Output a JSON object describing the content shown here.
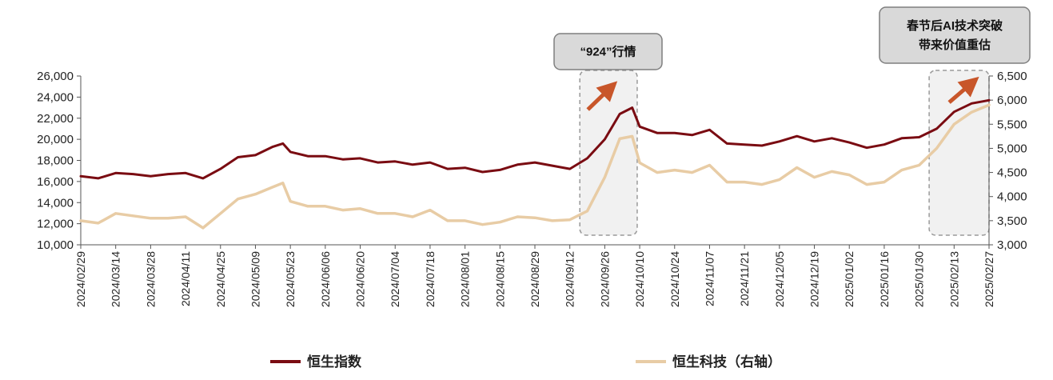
{
  "chart_data": {
    "type": "line",
    "x_labels": [
      "2024/02/29",
      "2024/03/14",
      "2024/03/28",
      "2024/04/11",
      "2024/04/25",
      "2024/05/09",
      "2024/05/23",
      "2024/06/06",
      "2024/06/20",
      "2024/07/04",
      "2024/07/18",
      "2024/08/01",
      "2024/08/15",
      "2024/08/29",
      "2024/09/12",
      "2024/09/26",
      "2024/10/10",
      "2024/10/24",
      "2024/11/07",
      "2024/11/21",
      "2024/12/05",
      "2024/12/19",
      "2025/01/02",
      "2025/01/16",
      "2025/01/30",
      "2025/02/13",
      "2025/02/27"
    ],
    "left_axis": {
      "ylim": [
        10000,
        26000
      ],
      "ticks": [
        "10,000",
        "12,000",
        "14,000",
        "16,000",
        "18,000",
        "20,000",
        "22,000",
        "24,000",
        "26,000"
      ]
    },
    "right_axis": {
      "ylim": [
        3000,
        6500
      ],
      "ticks": [
        "3,000",
        "3,500",
        "4,000",
        "4,500",
        "5,000",
        "5,500",
        "6,000",
        "6,500"
      ]
    },
    "series": [
      {
        "name": "恒生指数",
        "axis": "left",
        "color": "#7a0c12",
        "points": [
          [
            "2024/02/29",
            16500
          ],
          [
            "2024/03/07",
            16300
          ],
          [
            "2024/03/14",
            16800
          ],
          [
            "2024/03/21",
            16700
          ],
          [
            "2024/03/28",
            16500
          ],
          [
            "2024/04/04",
            16700
          ],
          [
            "2024/04/11",
            16800
          ],
          [
            "2024/04/18",
            16300
          ],
          [
            "2024/04/25",
            17200
          ],
          [
            "2024/05/02",
            18300
          ],
          [
            "2024/05/09",
            18500
          ],
          [
            "2024/05/16",
            19300
          ],
          [
            "2024/05/20",
            19600
          ],
          [
            "2024/05/23",
            18800
          ],
          [
            "2024/05/30",
            18400
          ],
          [
            "2024/06/06",
            18400
          ],
          [
            "2024/06/13",
            18100
          ],
          [
            "2024/06/20",
            18200
          ],
          [
            "2024/06/27",
            17800
          ],
          [
            "2024/07/04",
            17900
          ],
          [
            "2024/07/11",
            17600
          ],
          [
            "2024/07/18",
            17800
          ],
          [
            "2024/07/25",
            17200
          ],
          [
            "2024/08/01",
            17300
          ],
          [
            "2024/08/08",
            16900
          ],
          [
            "2024/08/15",
            17100
          ],
          [
            "2024/08/22",
            17600
          ],
          [
            "2024/08/29",
            17800
          ],
          [
            "2024/09/05",
            17500
          ],
          [
            "2024/09/12",
            17200
          ],
          [
            "2024/09/19",
            18200
          ],
          [
            "2024/09/26",
            20000
          ],
          [
            "2024/10/02",
            22400
          ],
          [
            "2024/10/07",
            23000
          ],
          [
            "2024/10/10",
            21200
          ],
          [
            "2024/10/17",
            20600
          ],
          [
            "2024/10/24",
            20600
          ],
          [
            "2024/10/31",
            20400
          ],
          [
            "2024/11/07",
            20900
          ],
          [
            "2024/11/14",
            19600
          ],
          [
            "2024/11/21",
            19500
          ],
          [
            "2024/11/28",
            19400
          ],
          [
            "2024/12/05",
            19800
          ],
          [
            "2024/12/12",
            20300
          ],
          [
            "2024/12/19",
            19800
          ],
          [
            "2024/12/26",
            20100
          ],
          [
            "2025/01/02",
            19700
          ],
          [
            "2025/01/09",
            19200
          ],
          [
            "2025/01/16",
            19500
          ],
          [
            "2025/01/23",
            20100
          ],
          [
            "2025/01/30",
            20200
          ],
          [
            "2025/02/06",
            21000
          ],
          [
            "2025/02/13",
            22600
          ],
          [
            "2025/02/20",
            23400
          ],
          [
            "2025/02/27",
            23700
          ]
        ]
      },
      {
        "name": "恒生科技（右轴）",
        "axis": "right",
        "color": "#e8cca5",
        "points": [
          [
            "2024/02/29",
            3500
          ],
          [
            "2024/03/07",
            3450
          ],
          [
            "2024/03/14",
            3650
          ],
          [
            "2024/03/21",
            3600
          ],
          [
            "2024/03/28",
            3550
          ],
          [
            "2024/04/04",
            3550
          ],
          [
            "2024/04/11",
            3580
          ],
          [
            "2024/04/18",
            3350
          ],
          [
            "2024/04/25",
            3650
          ],
          [
            "2024/05/02",
            3950
          ],
          [
            "2024/05/09",
            4050
          ],
          [
            "2024/05/16",
            4200
          ],
          [
            "2024/05/20",
            4280
          ],
          [
            "2024/05/23",
            3900
          ],
          [
            "2024/05/30",
            3800
          ],
          [
            "2024/06/06",
            3800
          ],
          [
            "2024/06/13",
            3720
          ],
          [
            "2024/06/20",
            3750
          ],
          [
            "2024/06/27",
            3650
          ],
          [
            "2024/07/04",
            3650
          ],
          [
            "2024/07/11",
            3580
          ],
          [
            "2024/07/18",
            3720
          ],
          [
            "2024/07/25",
            3500
          ],
          [
            "2024/08/01",
            3500
          ],
          [
            "2024/08/08",
            3420
          ],
          [
            "2024/08/15",
            3470
          ],
          [
            "2024/08/22",
            3580
          ],
          [
            "2024/08/29",
            3560
          ],
          [
            "2024/09/05",
            3500
          ],
          [
            "2024/09/12",
            3520
          ],
          [
            "2024/09/19",
            3700
          ],
          [
            "2024/09/26",
            4400
          ],
          [
            "2024/10/02",
            5200
          ],
          [
            "2024/10/07",
            5250
          ],
          [
            "2024/10/10",
            4700
          ],
          [
            "2024/10/17",
            4500
          ],
          [
            "2024/10/24",
            4550
          ],
          [
            "2024/10/31",
            4500
          ],
          [
            "2024/11/07",
            4650
          ],
          [
            "2024/11/14",
            4300
          ],
          [
            "2024/11/21",
            4300
          ],
          [
            "2024/11/28",
            4250
          ],
          [
            "2024/12/05",
            4350
          ],
          [
            "2024/12/12",
            4600
          ],
          [
            "2024/12/19",
            4400
          ],
          [
            "2024/12/26",
            4520
          ],
          [
            "2025/01/02",
            4450
          ],
          [
            "2025/01/09",
            4250
          ],
          [
            "2025/01/16",
            4300
          ],
          [
            "2025/01/23",
            4550
          ],
          [
            "2025/01/30",
            4650
          ],
          [
            "2025/02/06",
            5000
          ],
          [
            "2025/02/13",
            5500
          ],
          [
            "2025/02/20",
            5750
          ],
          [
            "2025/02/27",
            5900
          ]
        ]
      }
    ],
    "annotations": [
      {
        "lines": [
          "“924”行情"
        ],
        "start": "2024/09/16",
        "end": "2024/10/09"
      },
      {
        "lines": [
          "春节后AI技术突破",
          "带来价值重估"
        ],
        "start": "2025/02/03",
        "end": "2025/02/27"
      }
    ],
    "legend_placement": "bottom",
    "grid": false
  }
}
